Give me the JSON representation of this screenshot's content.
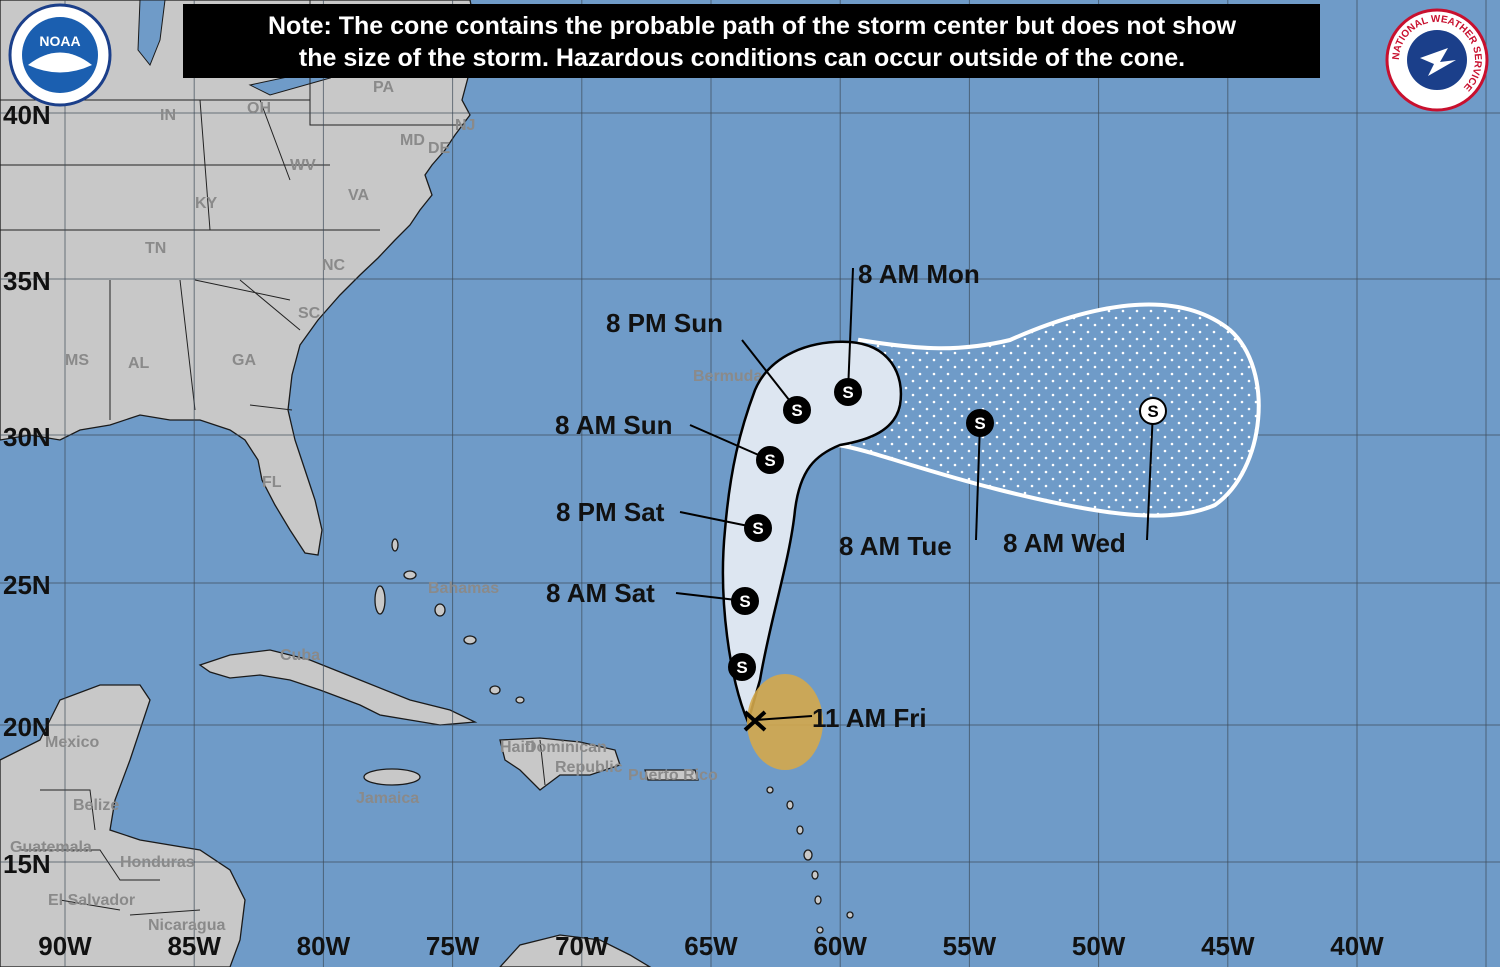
{
  "note": [
    "Note: The cone contains the probable path of the storm center but does not show",
    "the size of the storm. Hazardous conditions can occur outside of the cone."
  ],
  "logos": {
    "noaa": "NOAA",
    "nws": "NATIONAL WEATHER SERVICE"
  },
  "lat_labels": [
    "40N",
    "35N",
    "30N",
    "25N",
    "20N",
    "15N"
  ],
  "lon_labels": [
    "90W",
    "85W",
    "80W",
    "75W",
    "70W",
    "65W",
    "60W",
    "55W",
    "50W",
    "45W",
    "40W"
  ],
  "places": [
    "IN",
    "OH",
    "PA",
    "NJ",
    "MD",
    "DE",
    "WV",
    "VA",
    "KY",
    "TN",
    "NC",
    "SC",
    "MS",
    "AL",
    "GA",
    "FL",
    "Bermuda",
    "Bahamas",
    "Cuba",
    "Mexico",
    "Haiti",
    "Dominican",
    "Republic",
    "Puerto Rico",
    "Jamaica",
    "Belize",
    "Guatemala",
    "Honduras",
    "El Salvador",
    "Nicaragua"
  ],
  "forecast_labels": [
    "11 AM Fri",
    "8 AM Sat",
    "8 PM Sat",
    "8 AM Sun",
    "8 PM Sun",
    "8 AM Mon",
    "8 AM Tue",
    "8 AM Wed"
  ],
  "storm_symbol": "S"
}
